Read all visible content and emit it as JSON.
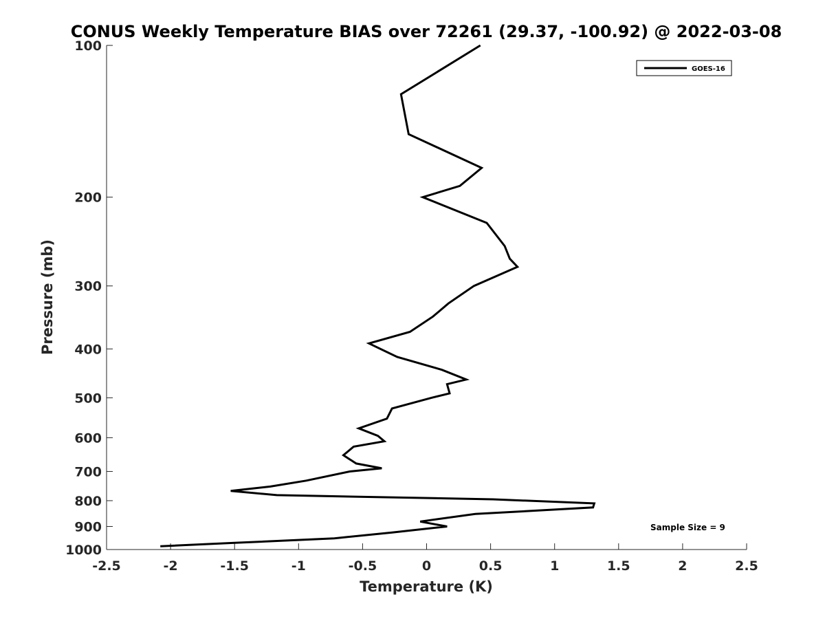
{
  "chart_data": {
    "type": "line",
    "title": "CONUS Weekly Temperature BIAS over 72261 (29.37, -100.92) @ 2022-03-08",
    "xlabel": "Temperature (K)",
    "ylabel": "Pressure (mb)",
    "xlim": [
      -2.5,
      2.5
    ],
    "ylim": [
      1000,
      100
    ],
    "y_scale": "log",
    "y_reversed": true,
    "x_ticks": [
      -2.5,
      -2,
      -1.5,
      -1,
      -0.5,
      0,
      0.5,
      1,
      1.5,
      2,
      2.5
    ],
    "x_tick_labels": [
      "-2.5",
      "-2",
      "-1.5",
      "-1",
      "-0.5",
      "0",
      "0.5",
      "1",
      "1.5",
      "2",
      "2.5"
    ],
    "y_ticks": [
      100,
      200,
      300,
      400,
      500,
      600,
      700,
      800,
      900,
      1000
    ],
    "y_tick_labels": [
      "100",
      "200",
      "300",
      "400",
      "500",
      "600",
      "700",
      "800",
      "900",
      "1000"
    ],
    "grid": false,
    "legend_position": "top-right",
    "series": [
      {
        "name": "GOES-16",
        "color": "#000000",
        "points": [
          [
            0.42,
            100
          ],
          [
            -0.2,
            125
          ],
          [
            -0.14,
            150
          ],
          [
            0.43,
            175
          ],
          [
            0.26,
            190
          ],
          [
            -0.03,
            200
          ],
          [
            0.47,
            225
          ],
          [
            0.61,
            250
          ],
          [
            0.65,
            265
          ],
          [
            0.71,
            275
          ],
          [
            0.37,
            300
          ],
          [
            0.17,
            325
          ],
          [
            0.05,
            345
          ],
          [
            -0.13,
            370
          ],
          [
            -0.45,
            390
          ],
          [
            -0.23,
            415
          ],
          [
            0.12,
            440
          ],
          [
            0.31,
            460
          ],
          [
            0.16,
            470
          ],
          [
            0.18,
            490
          ],
          [
            0.04,
            500
          ],
          [
            -0.27,
            525
          ],
          [
            -0.31,
            550
          ],
          [
            -0.53,
            575
          ],
          [
            -0.38,
            595
          ],
          [
            -0.33,
            610
          ],
          [
            -0.57,
            625
          ],
          [
            -0.65,
            650
          ],
          [
            -0.55,
            675
          ],
          [
            -0.35,
            690
          ],
          [
            -0.6,
            700
          ],
          [
            -0.94,
            730
          ],
          [
            -1.22,
            750
          ],
          [
            -1.53,
            765
          ],
          [
            -1.17,
            780
          ],
          [
            0.52,
            795
          ],
          [
            1.31,
            810
          ],
          [
            1.3,
            825
          ],
          [
            0.38,
            850
          ],
          [
            -0.05,
            880
          ],
          [
            0.16,
            900
          ],
          [
            -0.27,
            925
          ],
          [
            -0.72,
            950
          ],
          [
            -1.5,
            970
          ],
          [
            -2.08,
            985
          ]
        ]
      }
    ],
    "annotations": [
      {
        "text": "Sample Size = 9",
        "position": "bottom-right"
      }
    ]
  }
}
